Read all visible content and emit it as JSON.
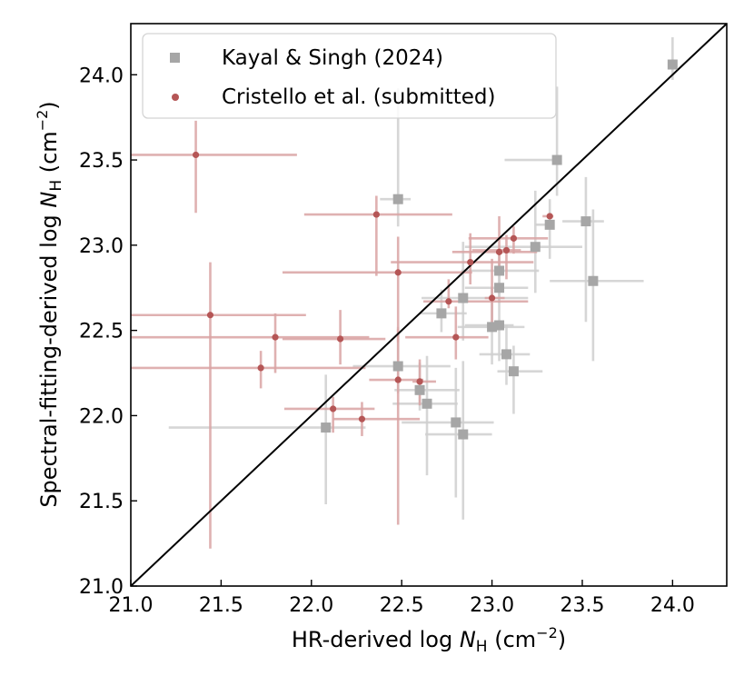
{
  "chart_data": {
    "type": "scatter",
    "title": "",
    "xlabel": {
      "pre": "HR-derived log ",
      "var": "N",
      "sub": "H",
      "unit_pre": " (cm",
      "sup": "−2",
      "unit_post": ")"
    },
    "ylabel": {
      "pre": "Spectral-fitting-derived log ",
      "var": "N",
      "sub": "H",
      "unit_pre": " (cm",
      "sup": "−2",
      "unit_post": ")"
    },
    "xlim": [
      21.0,
      24.3
    ],
    "ylim": [
      21.0,
      24.3
    ],
    "xticks": [
      "21.0",
      "21.5",
      "22.0",
      "22.5",
      "23.0",
      "23.5",
      "24.0"
    ],
    "yticks": [
      "21.0",
      "21.5",
      "22.0",
      "22.5",
      "23.0",
      "23.5",
      "24.0"
    ],
    "reference_line": "one-to-one",
    "legend": {
      "position": "top-left"
    },
    "series": [
      {
        "name": "Kayal & Singh (2024)",
        "marker": "square",
        "color": "#a6a6a6",
        "error_color": "#cfcfcf",
        "points": [
          {
            "x": 24.0,
            "y": 24.06,
            "xerr": [
              0.0,
              0.0
            ],
            "yerr": [
              0.09,
              0.16
            ]
          },
          {
            "x": 23.36,
            "y": 23.5,
            "xerr": [
              0.29,
              0.0
            ],
            "yerr": [
              0.21,
              0.43
            ]
          },
          {
            "x": 23.32,
            "y": 23.12,
            "xerr": [
              0.08,
              0.0
            ],
            "yerr": [
              0.2,
              0.15
            ]
          },
          {
            "x": 23.52,
            "y": 23.14,
            "xerr": [
              0.13,
              0.1
            ],
            "yerr": [
              0.59,
              0.26
            ]
          },
          {
            "x": 23.24,
            "y": 22.99,
            "xerr": [
              0.39,
              0.26
            ],
            "yerr": [
              0.27,
              0.33
            ]
          },
          {
            "x": 22.48,
            "y": 23.27,
            "xerr": [
              0.1,
              0.07
            ],
            "yerr": [
              0.16,
              0.65
            ]
          },
          {
            "x": 23.04,
            "y": 22.85,
            "xerr": [
              0.21,
              0.22
            ],
            "yerr": [
              0.18,
              0.15
            ]
          },
          {
            "x": 23.04,
            "y": 22.75,
            "xerr": [
              0.19,
              0.16
            ],
            "yerr": [
              0.09,
              0.14
            ]
          },
          {
            "x": 23.56,
            "y": 22.79,
            "xerr": [
              0.24,
              0.28
            ],
            "yerr": [
              0.47,
              0.42
            ]
          },
          {
            "x": 22.84,
            "y": 22.69,
            "xerr": [
              0.23,
              0.36
            ],
            "yerr": [
              0.25,
              0.33
            ]
          },
          {
            "x": 22.72,
            "y": 22.6,
            "xerr": [
              0.12,
              0.14
            ],
            "yerr": [
              0.11,
              0.14
            ]
          },
          {
            "x": 23.0,
            "y": 22.52,
            "xerr": [
              0.19,
              0.18
            ],
            "yerr": [
              0.22,
              0.23
            ]
          },
          {
            "x": 23.04,
            "y": 22.53,
            "xerr": [
              0.19,
              0.08
            ],
            "yerr": [
              0.21,
              0.19
            ]
          },
          {
            "x": 23.08,
            "y": 22.36,
            "xerr": [
              0.15,
              0.13
            ],
            "yerr": [
              0.18,
              0.17
            ]
          },
          {
            "x": 23.12,
            "y": 22.26,
            "xerr": [
              0.09,
              0.16
            ],
            "yerr": [
              0.25,
              0.15
            ]
          },
          {
            "x": 22.48,
            "y": 22.29,
            "xerr": [
              0.25,
              0.29
            ],
            "yerr": [
              0.16,
              0.23
            ]
          },
          {
            "x": 22.6,
            "y": 22.15,
            "xerr": [
              0.14,
              0.22
            ],
            "yerr": [
              0.12,
              0.16
            ]
          },
          {
            "x": 22.64,
            "y": 22.07,
            "xerr": [
              0.19,
              0.17
            ],
            "yerr": [
              0.42,
              0.28
            ]
          },
          {
            "x": 22.08,
            "y": 21.93,
            "xerr": [
              0.87,
              0.22
            ],
            "yerr": [
              0.45,
              0.31
            ]
          },
          {
            "x": 22.8,
            "y": 21.96,
            "xerr": [
              0.3,
              0.21
            ],
            "yerr": [
              0.44,
              0.32
            ]
          },
          {
            "x": 22.84,
            "y": 21.89,
            "xerr": [
              0.21,
              0.16
            ],
            "yerr": [
              0.5,
              0.43
            ]
          }
        ]
      },
      {
        "name": "Cristello et al. (submitted)",
        "marker": "circle",
        "color": "#b55656",
        "error_color": "#d9a3a3",
        "points": [
          {
            "x": 21.36,
            "y": 23.53,
            "xerr": [
              0.4,
              0.56
            ],
            "yerr": [
              0.34,
              0.2
            ]
          },
          {
            "x": 22.36,
            "y": 23.18,
            "xerr": [
              0.4,
              0.42
            ],
            "yerr": [
              0.36,
              0.11
            ]
          },
          {
            "x": 23.32,
            "y": 23.17,
            "xerr": [
              0.04,
              0.02
            ],
            "yerr": [
              0.0,
              0.0
            ]
          },
          {
            "x": 23.12,
            "y": 23.04,
            "xerr": [
              0.25,
              0.19
            ],
            "yerr": [
              0.09,
              0.07
            ]
          },
          {
            "x": 23.04,
            "y": 22.96,
            "xerr": [
              0.26,
              0.21
            ],
            "yerr": [
              0.13,
              0.21
            ]
          },
          {
            "x": 23.08,
            "y": 22.97,
            "xerr": [
              0.19,
              0.08
            ],
            "yerr": [
              0.17,
              0.09
            ]
          },
          {
            "x": 22.88,
            "y": 22.9,
            "xerr": [
              0.44,
              0.35
            ],
            "yerr": [
              0.13,
              0.17
            ]
          },
          {
            "x": 22.48,
            "y": 22.84,
            "xerr": [
              0.64,
              0.41
            ],
            "yerr": [
              0.41,
              0.21
            ]
          },
          {
            "x": 22.76,
            "y": 22.67,
            "xerr": [
              0.14,
              0.44
            ],
            "yerr": [
              0.04,
              0.13
            ]
          },
          {
            "x": 23.0,
            "y": 22.69,
            "xerr": [
              0.04,
              0.07
            ],
            "yerr": [
              0.18,
              0.23
            ]
          },
          {
            "x": 21.44,
            "y": 22.59,
            "xerr": [
              0.44,
              0.53
            ],
            "yerr": [
              1.37,
              0.31
            ]
          },
          {
            "x": 21.8,
            "y": 22.46,
            "xerr": [
              0.8,
              0.52
            ],
            "yerr": [
              0.21,
              0.14
            ]
          },
          {
            "x": 22.16,
            "y": 22.45,
            "xerr": [
              0.32,
              0.25
            ],
            "yerr": [
              0.15,
              0.17
            ]
          },
          {
            "x": 22.8,
            "y": 22.46,
            "xerr": [
              0.28,
              0.18
            ],
            "yerr": [
              0.13,
              0.18
            ]
          },
          {
            "x": 21.72,
            "y": 22.28,
            "xerr": [
              0.72,
              0.58
            ],
            "yerr": [
              0.12,
              0.1
            ]
          },
          {
            "x": 22.48,
            "y": 22.21,
            "xerr": [
              0.16,
              0.14
            ],
            "yerr": [
              0.85,
              0.3
            ]
          },
          {
            "x": 22.6,
            "y": 22.2,
            "xerr": [
              0.04,
              0.09
            ],
            "yerr": [
              0.14,
              0.13
            ]
          },
          {
            "x": 22.12,
            "y": 22.04,
            "xerr": [
              0.27,
              0.23
            ],
            "yerr": [
              0.14,
              0.07
            ]
          },
          {
            "x": 22.28,
            "y": 21.98,
            "xerr": [
              0.16,
              0.32
            ],
            "yerr": [
              0.1,
              0.1
            ]
          }
        ]
      }
    ]
  }
}
